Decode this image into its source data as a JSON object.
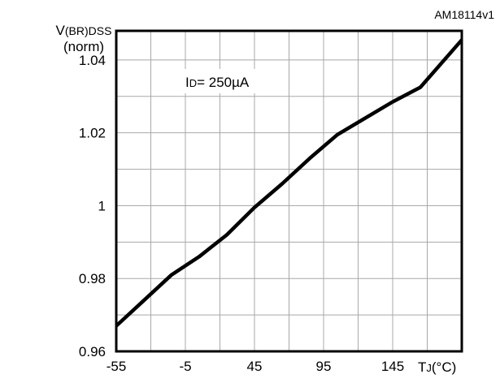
{
  "chart_data": {
    "type": "line",
    "figure_id": "AM18114v1",
    "ylabel_main": "V",
    "ylabel_sub": "(BR)DSS",
    "ylabel_unit": "(norm)",
    "xlabel_main": "T",
    "xlabel_sub": "J",
    "xlabel_unit": "(°C)",
    "annotation_main": "I",
    "annotation_sub": "D",
    "annotation_value": "= 250µA",
    "xlim": [
      -55,
      195
    ],
    "ylim": [
      0.96,
      1.048
    ],
    "grid": true,
    "x_ticks": [
      -55,
      -5,
      45,
      95,
      145
    ],
    "x_tick_labels": [
      "-55",
      "-5",
      "45",
      "95",
      "145"
    ],
    "y_ticks": [
      0.96,
      0.98,
      1.0,
      1.02,
      1.04
    ],
    "y_tick_labels": [
      "0.96",
      "0.98",
      "1",
      "1.02",
      "1.04"
    ],
    "series": [
      {
        "x": [
          -55,
          -35,
          -15,
          5,
          25,
          45,
          65,
          85,
          105,
          125,
          145,
          165,
          195
        ],
        "y": [
          0.967,
          0.974,
          0.981,
          0.986,
          0.992,
          0.9995,
          1.006,
          1.013,
          1.0195,
          1.024,
          1.0285,
          1.0325,
          1.0455
        ]
      }
    ]
  }
}
